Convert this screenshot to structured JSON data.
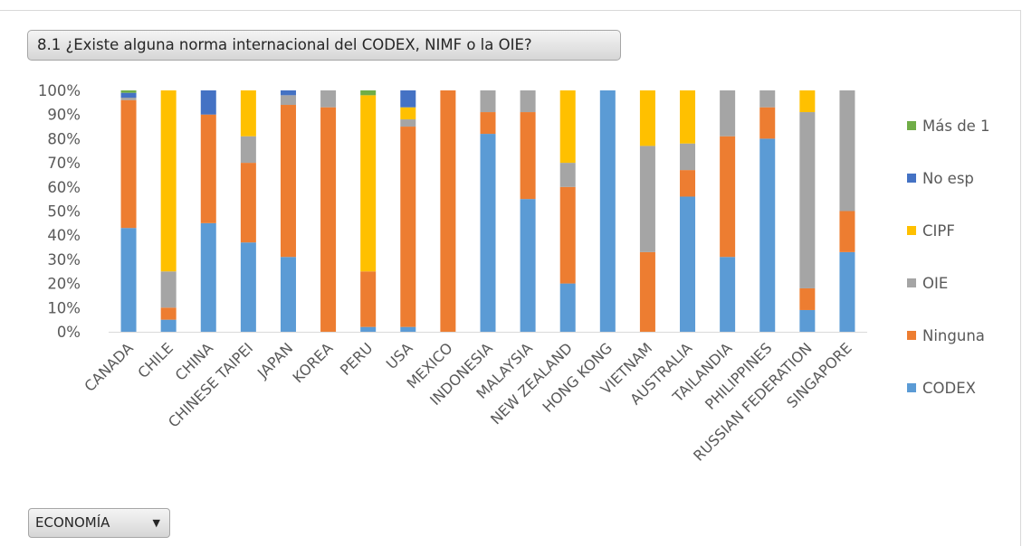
{
  "title": "8.1 ¿Existe alguna norma internacional del CODEX, NIMF o la OIE?",
  "filter": {
    "label": "ECONOMÍA"
  },
  "chart_data": {
    "type": "bar",
    "stacked": true,
    "title": "8.1 ¿Existe alguna norma internacional del CODEX, NIMF o la OIE?",
    "xlabel": "",
    "ylabel": "",
    "ylim": [
      0,
      100
    ],
    "yticks": [
      "0%",
      "10%",
      "20%",
      "30%",
      "40%",
      "50%",
      "60%",
      "70%",
      "80%",
      "90%",
      "100%"
    ],
    "grid": false,
    "legend_position": "right",
    "categories": [
      "CANADA",
      "CHILE",
      "CHINA",
      "CHINESE TAIPEI",
      "JAPAN",
      "KOREA",
      "PERU",
      "USA",
      "MEXICO",
      "INDONESIA",
      "MALAYSIA",
      "NEW ZEALAND",
      "HONG KONG",
      "VIETNAM",
      "AUSTRALIA",
      "TAILANDIA",
      "PHILIPPINES",
      "RUSSIAN FEDERATION",
      "SINGAPORE"
    ],
    "series": [
      {
        "name": "CODEX",
        "color": "#5b9bd5",
        "values": [
          43,
          5,
          45,
          37,
          31,
          0,
          2,
          2,
          0,
          82,
          55,
          20,
          100,
          0,
          56,
          31,
          80,
          9,
          33
        ]
      },
      {
        "name": "Ninguna",
        "color": "#ed7d31",
        "values": [
          53,
          5,
          45,
          33,
          63,
          93,
          23,
          83,
          100,
          9,
          36,
          40,
          0,
          33,
          11,
          50,
          13,
          9,
          17
        ]
      },
      {
        "name": "OIE",
        "color": "#a5a5a5",
        "values": [
          1,
          15,
          0,
          11,
          4,
          7,
          0,
          3,
          0,
          9,
          9,
          10,
          0,
          44,
          11,
          19,
          7,
          73,
          50
        ]
      },
      {
        "name": "CIPF",
        "color": "#ffc000",
        "values": [
          0,
          75,
          0,
          19,
          0,
          0,
          73,
          5,
          0,
          0,
          0,
          30,
          0,
          23,
          22,
          0,
          0,
          9,
          0
        ]
      },
      {
        "name": "No esp",
        "color": "#4472c4",
        "values": [
          2,
          0,
          10,
          0,
          2,
          0,
          0,
          7,
          0,
          0,
          0,
          0,
          0,
          0,
          0,
          0,
          0,
          0,
          0
        ]
      },
      {
        "name": "Más de 1",
        "color": "#70ad47",
        "values": [
          1,
          0,
          0,
          0,
          0,
          0,
          2,
          0,
          0,
          0,
          0,
          0,
          0,
          0,
          0,
          0,
          0,
          0,
          0
        ]
      }
    ]
  }
}
